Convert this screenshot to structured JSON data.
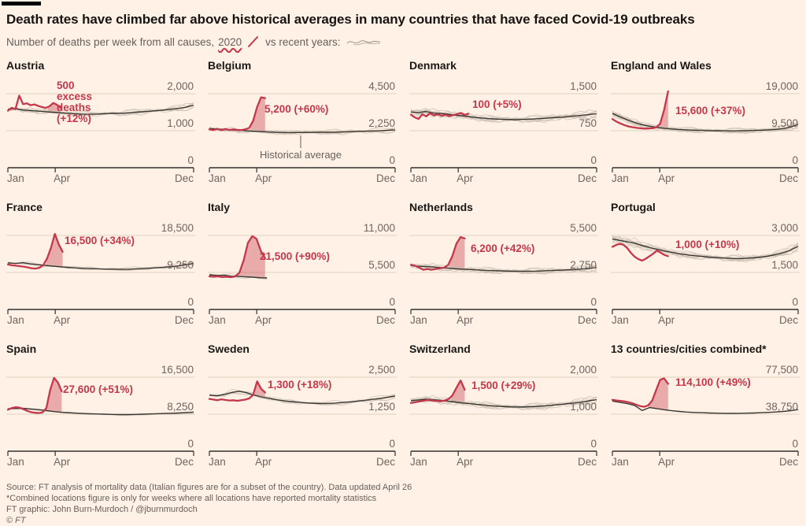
{
  "style": {
    "bg": "#FFF1E5",
    "red": "#c5374a",
    "red_fill_opacity": 0.38,
    "avg_line": "#3a3631",
    "hist_line": "#c9beb2",
    "grid_line": "#e0d2c0",
    "axis": "#33302e",
    "tick_text": "#6e665f"
  },
  "header": {
    "title": "Death rates have climbed far above historical averages in many countries that have faced Covid-19 outbreaks",
    "subtitle_prefix": "Number of deaths per week from all causes,",
    "subtitle_2020": "2020",
    "subtitle_vs": "vs recent years:"
  },
  "footer": {
    "line1": "Source: FT analysis of mortality data (Italian figures are for a subset of the country). Data updated April 26",
    "line2": "*Combined locations figure is only for weeks where all locations have reported mortality statistics",
    "line3": "FT graphic: John Burn-Murdoch / @jburnmurdoch",
    "line4": "© FT"
  },
  "chart_data": {
    "type": "line",
    "x_ticks": [
      "Jan",
      "Apr",
      "Dec"
    ],
    "x_range_weeks": [
      1,
      52
    ],
    "description": "Small multiples: weekly deaths from all causes. Red = 2020 (ends mid-April), dark line = historical average, thin grey lines = recent individual years. Pink area = 2020 excess deaths above historical average.",
    "panels": [
      {
        "title": "Austria",
        "ymax": 2000,
        "yticks": [
          "2,000",
          "1,000",
          "0"
        ],
        "label": {
          "lines": [
            "500",
            "excess",
            "deaths",
            "(+12%)"
          ],
          "x": 64,
          "y": 20
        },
        "avg": [
          1570,
          1600,
          1560,
          1545,
          1530,
          1515,
          1500,
          1485,
          1470,
          1460,
          1450,
          1445,
          1450,
          1460,
          1470,
          1465,
          1480,
          1495,
          1510,
          1525,
          1540,
          1560,
          1580,
          1605,
          1635,
          1690
        ],
        "avg_span": 1.0,
        "y2020": [
          1540,
          1620,
          1580,
          1950,
          1720,
          1740,
          1690,
          1710,
          1670,
          1640,
          1615,
          1660,
          1750,
          1700,
          1620
        ],
        "span2020": 0.285,
        "fill_from": 0.215,
        "hist": 6,
        "amp": 0.035
      },
      {
        "title": "Belgium",
        "ymax": 4500,
        "yticks": [
          "4,500",
          "2,250",
          "0"
        ],
        "label": {
          "lines": [
            "5,200 (+60%)"
          ],
          "x": 72,
          "y": 50
        },
        "annotation": {
          "text": "Historical average",
          "x": 118,
          "line_y1": 79,
          "line_y2": 95,
          "text_y": 108
        },
        "avg": [
          2380,
          2350,
          2330,
          2300,
          2270,
          2240,
          2215,
          2195,
          2170,
          2155,
          2145,
          2135,
          2140,
          2150,
          2145,
          2155,
          2165,
          2160,
          2175,
          2190,
          2205,
          2220,
          2235,
          2255,
          2275,
          2305
        ],
        "avg_span": 1.0,
        "y2020": [
          2340,
          2290,
          2360,
          2280,
          2350,
          2300,
          2330,
          2300,
          2290,
          2330,
          2420,
          2850,
          3700,
          4280,
          4230
        ],
        "span2020": 0.3,
        "fill_from": 0.22,
        "hist": 5,
        "amp": 0.03
      },
      {
        "title": "Denmark",
        "ymax": 1500,
        "yticks": [
          "1,500",
          "750",
          "0"
        ],
        "label": {
          "lines": [
            "100 (+5%)"
          ],
          "x": 80,
          "y": 44
        },
        "avg": [
          1130,
          1115,
          1140,
          1110,
          1100,
          1085,
          1065,
          1050,
          1030,
          1015,
          1000,
          990,
          983,
          978,
          974,
          978,
          984,
          992,
          1000,
          1012,
          1022,
          1034,
          1048,
          1062,
          1078,
          1095
        ],
        "avg_span": 1.0,
        "y2020": [
          1075,
          1020,
          990,
          1085,
          1040,
          1105,
          1060,
          1085,
          1050,
          1075,
          1045,
          1065,
          1085,
          1110,
          1070,
          1095
        ],
        "span2020": 0.31,
        "fill_from": 0.26,
        "hist": 8,
        "amp": 0.05
      },
      {
        "title": "England and Wales",
        "ymax": 19000,
        "yticks": [
          "19,000",
          "9,500",
          "0"
        ],
        "label": {
          "lines": [
            "15,600 (+37%)"
          ],
          "x": 82,
          "y": 52
        },
        "avg": [
          13900,
          13100,
          12300,
          11600,
          11050,
          10650,
          10350,
          10120,
          9950,
          9820,
          9720,
          9640,
          9580,
          9530,
          9490,
          9460,
          9450,
          9470,
          9510,
          9560,
          9630,
          9720,
          9850,
          10050,
          10450,
          11100
        ],
        "avg_span": 1.0,
        "y2020": [
          12500,
          11850,
          11350,
          10950,
          10620,
          10400,
          10250,
          10120,
          10020,
          10060,
          10120,
          10350,
          11300,
          14800,
          19600
        ],
        "span2020": 0.3,
        "fill_from": 0.245,
        "hist": 8,
        "amp": 0.035
      },
      {
        "title": "France",
        "ymax": 18500,
        "yticks": [
          "18,500",
          "9,250",
          "0"
        ],
        "label": {
          "lines": [
            "16,500 (+34%)"
          ],
          "x": 74,
          "y": 37
        },
        "avg": [
          11650,
          11500,
          11700,
          11400,
          11200,
          11000,
          10820,
          10680,
          10520,
          10400,
          10300,
          10220,
          10150,
          10100,
          10060,
          10020,
          10060,
          10110,
          10200,
          10300,
          10420,
          10540,
          10700,
          10900,
          11180,
          11480
        ],
        "avg_span": 1.0,
        "y2020": [
          11250,
          11050,
          10950,
          10820,
          10700,
          10520,
          10320,
          10220,
          10420,
          11050,
          12700,
          15400,
          18900,
          16300,
          14400
        ],
        "span2020": 0.295,
        "fill_from": 0.205,
        "hist": 3,
        "amp": 0.018
      },
      {
        "title": "Italy",
        "ymax": 11000,
        "yticks": [
          "11,000",
          "5,500",
          "0"
        ],
        "label": {
          "lines": [
            "21,500 (+90%)"
          ],
          "x": 66,
          "y": 57
        },
        "avg": [
          5150,
          5050,
          5100,
          4950,
          4900,
          4850,
          4800,
          4720,
          4680
        ],
        "avg_span": 0.31,
        "y2020": [
          4920,
          4860,
          4910,
          4810,
          4860,
          4800,
          4920,
          5450,
          7300,
          9900,
          10900,
          10500,
          8700,
          7600
        ],
        "span2020": 0.3,
        "fill_from": 0.115,
        "hist": 3,
        "amp": 0.025
      },
      {
        "title": "Netherlands",
        "ymax": 5500,
        "yticks": [
          "5,500",
          "2,750",
          "0"
        ],
        "label": {
          "lines": [
            "6,200 (+42%)"
          ],
          "x": 78,
          "y": 47
        },
        "avg": [
          3260,
          3210,
          3185,
          3155,
          3105,
          3065,
          3025,
          2995,
          2965,
          2935,
          2905,
          2885,
          2865,
          2852,
          2842,
          2832,
          2842,
          2852,
          2872,
          2892,
          2912,
          2935,
          2962,
          3002,
          3052,
          3105
        ],
        "avg_span": 1.0,
        "y2020": [
          3310,
          3255,
          3100,
          2950,
          3005,
          2950,
          3005,
          3055,
          3105,
          3310,
          3950,
          4900,
          5380,
          5280
        ],
        "span2020": 0.29,
        "fill_from": 0.205,
        "hist": 7,
        "amp": 0.04
      },
      {
        "title": "Portugal",
        "ymax": 3000,
        "yticks": [
          "3,000",
          "1,500",
          "0"
        ],
        "label": {
          "lines": [
            "1,000 (+10%)"
          ],
          "x": 82,
          "y": 42
        },
        "avg": [
          2860,
          2800,
          2740,
          2690,
          2590,
          2510,
          2440,
          2370,
          2310,
          2255,
          2215,
          2180,
          2150,
          2122,
          2100,
          2082,
          2070,
          2062,
          2072,
          2092,
          2122,
          2165,
          2225,
          2305,
          2410,
          2560
        ],
        "avg_span": 1.0,
        "y2020": [
          2540,
          2610,
          2660,
          2620,
          2490,
          2290,
          2140,
          2040,
          1980,
          2060,
          2160,
          2260,
          2390,
          2300,
          2210,
          2160
        ],
        "span2020": 0.3,
        "fill_from": 0.225,
        "hist": 8,
        "amp": 0.05
      },
      {
        "title": "Spain",
        "ymax": 16500,
        "yticks": [
          "16,500",
          "8,250",
          "0"
        ],
        "label": {
          "lines": [
            "27,600 (+51%)"
          ],
          "x": 72,
          "y": 46
        },
        "avg": [
          9450,
          9520,
          9560,
          9420,
          9280,
          9090,
          8890,
          8710,
          8600,
          8500,
          8410,
          8350,
          8300,
          8255,
          8205,
          8160,
          8160,
          8205,
          8255,
          8305,
          8355,
          8405,
          8455,
          8505,
          8605,
          8705
        ],
        "avg_span": 1.0,
        "y2020": [
          9250,
          9620,
          9820,
          9700,
          9380,
          9000,
          8700,
          8560,
          8510,
          8620,
          9600,
          13700,
          16350,
          15300,
          13350
        ],
        "span2020": 0.29,
        "fill_from": 0.195,
        "hist": 2,
        "amp": 0.008
      },
      {
        "title": "Sweden",
        "ymax": 2500,
        "yticks": [
          "2,500",
          "1,250",
          "0"
        ],
        "label": {
          "lines": [
            "1,300 (+18%)"
          ],
          "x": 76,
          "y": 40
        },
        "avg": [
          1890,
          1870,
          1915,
          1985,
          2025,
          1975,
          1895,
          1835,
          1785,
          1740,
          1705,
          1675,
          1652,
          1632,
          1618,
          1608,
          1615,
          1625,
          1645,
          1665,
          1692,
          1722,
          1752,
          1782,
          1822,
          1862
        ],
        "avg_span": 1.0,
        "y2020": [
          1765,
          1745,
          1720,
          1752,
          1732,
          1712,
          1722,
          1702,
          1722,
          1742,
          1782,
          1905,
          2360,
          2110,
          1985
        ],
        "span2020": 0.3,
        "fill_from": 0.245,
        "hist": 4,
        "amp": 0.03
      },
      {
        "title": "Switzerland",
        "ymax": 2000,
        "yticks": [
          "2,000",
          "1,000",
          "0"
        ],
        "label": {
          "lines": [
            "1,500 (+29%)"
          ],
          "x": 79,
          "y": 41
        },
        "avg": [
          1365,
          1385,
          1405,
          1392,
          1372,
          1352,
          1330,
          1302,
          1282,
          1262,
          1242,
          1222,
          1212,
          1202,
          1196,
          1192,
          1202,
          1212,
          1222,
          1242,
          1262,
          1282,
          1302,
          1332,
          1362,
          1392
        ],
        "avg_span": 1.0,
        "y2020": [
          1305,
          1322,
          1342,
          1362,
          1382,
          1372,
          1362,
          1352,
          1362,
          1402,
          1502,
          1712,
          1910,
          1660
        ],
        "span2020": 0.29,
        "fill_from": 0.215,
        "hist": 7,
        "amp": 0.045
      },
      {
        "title": "13 countries/cities combined*",
        "ymax": 77500,
        "yticks": [
          "77,500",
          "38,750",
          "0"
        ],
        "label": {
          "lines": [
            "114,100 (+49%)"
          ],
          "x": 82,
          "y": 37
        },
        "avg": [
          52500,
          51200,
          49800,
          47900,
          42600,
          45700,
          44600,
          43400,
          42400,
          41600,
          41000,
          40600,
          40300,
          40000,
          39800,
          39650,
          39580,
          39650,
          39800,
          40000,
          40300,
          40650,
          41050,
          41600,
          42400,
          43500
        ],
        "avg_span": 1.0,
        "y2020": [
          53800,
          53200,
          52700,
          52200,
          51400,
          50200,
          48700,
          47200,
          46500,
          48000,
          53000,
          64000,
          74800,
          76300,
          70600
        ],
        "span2020": 0.3,
        "fill_from": 0.195,
        "hist": 0,
        "amp": 0
      }
    ]
  }
}
